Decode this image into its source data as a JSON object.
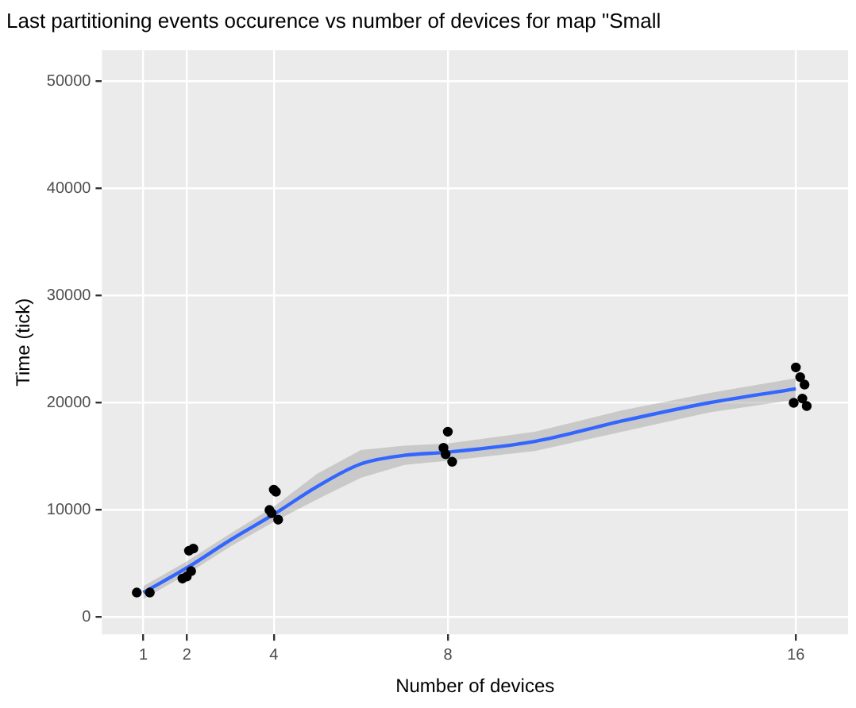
{
  "chart_data": {
    "type": "scatter",
    "title": "Last partitioning events occurence vs number of devices for map \"Small",
    "xlabel": "Number of devices",
    "ylabel": "Time (tick)",
    "xlim": [
      0.05,
      17.2
    ],
    "xticks": [
      1,
      2,
      4,
      8,
      16
    ],
    "ylim": [
      -1600,
      52900
    ],
    "yticks": [
      0,
      10000,
      20000,
      30000,
      40000,
      50000
    ],
    "grid": true,
    "legend": false,
    "series": [
      {
        "type": "line",
        "marker": "none",
        "color": "#3366ff",
        "x": [
          1,
          2,
          3,
          4,
          5,
          6,
          7,
          8,
          10,
          12,
          14,
          16
        ],
        "values": [
          2300,
          4600,
          7200,
          9600,
          12200,
          14300,
          15100,
          15400,
          16400,
          18300,
          20000,
          21300
        ],
        "lower": [
          1700,
          4000,
          6600,
          8900,
          11000,
          13000,
          14200,
          14600,
          15500,
          17300,
          19100,
          20300
        ],
        "upper": [
          2900,
          5200,
          7800,
          10300,
          13400,
          15600,
          16000,
          16200,
          17300,
          19300,
          20900,
          22300
        ]
      },
      {
        "marker": "circle",
        "color": "#000000",
        "x": [
          0.85,
          1.15,
          1.9,
          2.05,
          2.15,
          2.0,
          2.1,
          3.9,
          4.0,
          4.1,
          3.95,
          4.05,
          7.9,
          8.0,
          8.1,
          7.95,
          16.0,
          16.1,
          16.2,
          15.95,
          16.25,
          16.15
        ],
        "values": [
          2300,
          2300,
          3600,
          6200,
          6400,
          3800,
          4300,
          10000,
          11900,
          9100,
          9700,
          11700,
          15800,
          17300,
          14500,
          15200,
          23300,
          22400,
          21700,
          20000,
          19700,
          20400
        ]
      }
    ]
  }
}
